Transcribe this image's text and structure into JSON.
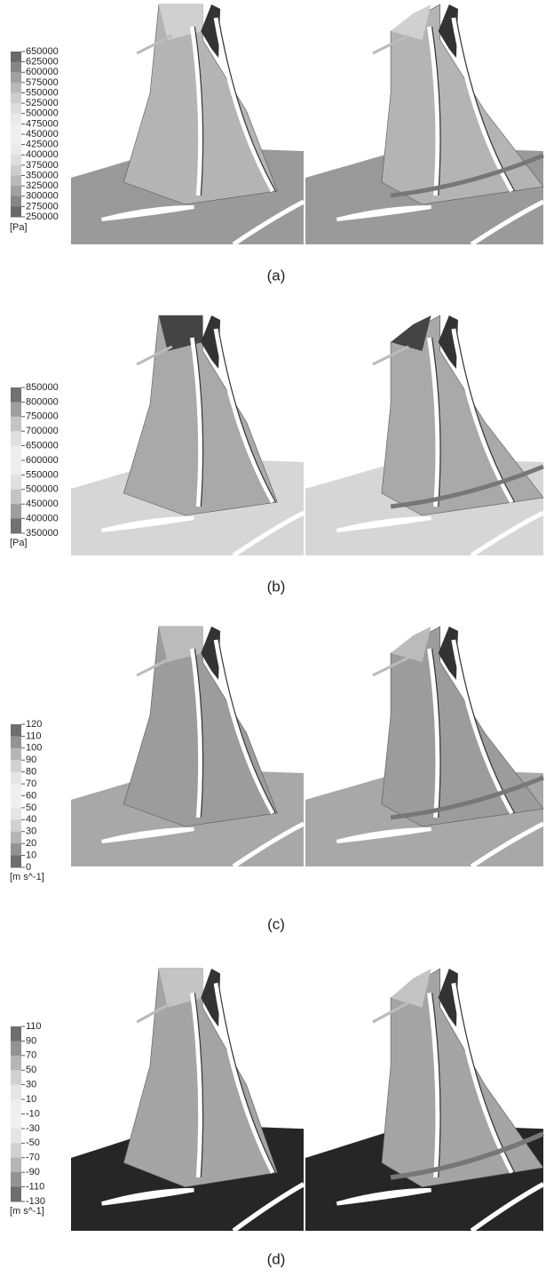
{
  "panels": [
    {
      "label": "(a)",
      "legend": {
        "ticks": [
          650000,
          625000,
          600000,
          575000,
          550000,
          525000,
          500000,
          475000,
          450000,
          425000,
          400000,
          375000,
          350000,
          325000,
          300000,
          275000,
          250000
        ],
        "unit": "[Pa]"
      }
    },
    {
      "label": "(b)",
      "legend": {
        "ticks": [
          850000,
          800000,
          750000,
          700000,
          650000,
          600000,
          550000,
          500000,
          450000,
          400000,
          350000
        ],
        "unit": "[Pa]"
      }
    },
    {
      "label": "(c)",
      "legend": {
        "ticks": [
          120,
          110,
          100,
          90,
          80,
          70,
          60,
          50,
          40,
          30,
          20,
          10,
          0
        ],
        "unit": "[m s^-1]"
      }
    },
    {
      "label": "(d)",
      "legend": {
        "ticks": [
          110,
          90,
          70,
          50,
          30,
          10,
          -10,
          -30,
          -50,
          -70,
          -90,
          -110,
          -130
        ],
        "unit": "[m s^-1]"
      }
    }
  ]
}
